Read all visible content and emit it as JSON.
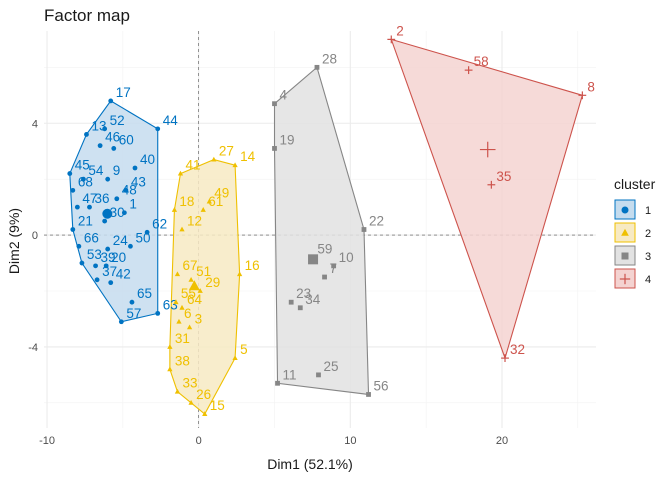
{
  "chart_data": {
    "type": "scatter",
    "title": "Factor map",
    "xlabel": "Dim1 (52.1%)",
    "ylabel": "Dim2 (9%)",
    "xlim": [
      -10.2,
      26.2
    ],
    "ylim": [
      -6.9,
      7.3
    ],
    "xticks": [
      -10,
      0,
      10,
      20
    ],
    "yticks": [
      -4,
      0,
      4
    ],
    "grid": true,
    "legend": {
      "title": "cluster",
      "position": "right"
    },
    "clusters": [
      {
        "name": "1",
        "color": "#0073C2",
        "fill": "#c5dcee",
        "marker": "circle",
        "points": [
          {
            "label": "17",
            "x": -5.8,
            "y": 4.8
          },
          {
            "label": "44",
            "x": -2.7,
            "y": 3.8
          },
          {
            "label": "13",
            "x": -7.4,
            "y": 3.6
          },
          {
            "label": "52",
            "x": -6.2,
            "y": 3.8
          },
          {
            "label": "46",
            "x": -6.5,
            "y": 3.2
          },
          {
            "label": "60",
            "x": -5.6,
            "y": 3.1
          },
          {
            "label": "45",
            "x": -8.5,
            "y": 2.2
          },
          {
            "label": "40",
            "x": -4.2,
            "y": 2.4
          },
          {
            "label": "54",
            "x": -7.6,
            "y": 2.0
          },
          {
            "label": "9",
            "x": -6.0,
            "y": 2.0
          },
          {
            "label": "68",
            "x": -8.3,
            "y": 1.6
          },
          {
            "label": "43",
            "x": -4.8,
            "y": 1.6
          },
          {
            "label": "48",
            "x": -5.4,
            "y": 1.3
          },
          {
            "label": "36",
            "x": -7.2,
            "y": 1.0
          },
          {
            "label": "47",
            "x": -8.0,
            "y": 1.0
          },
          {
            "label": "1",
            "x": -4.9,
            "y": 0.8
          },
          {
            "label": "30",
            "x": -6.2,
            "y": 0.5
          },
          {
            "label": "21",
            "x": -8.3,
            "y": 0.2
          },
          {
            "label": "62",
            "x": -3.4,
            "y": 0.1
          },
          {
            "label": "24",
            "x": -6.0,
            "y": -0.5
          },
          {
            "label": "50",
            "x": -4.5,
            "y": -0.4
          },
          {
            "label": "66",
            "x": -7.9,
            "y": -0.4
          },
          {
            "label": "53",
            "x": -7.7,
            "y": -1.0
          },
          {
            "label": "20",
            "x": -6.1,
            "y": -1.1
          },
          {
            "label": "39",
            "x": -6.8,
            "y": -1.1
          },
          {
            "label": "37",
            "x": -6.7,
            "y": -1.6
          },
          {
            "label": "42",
            "x": -5.8,
            "y": -1.7
          },
          {
            "label": "65",
            "x": -4.4,
            "y": -2.4
          },
          {
            "label": "63",
            "x": -2.7,
            "y": -2.8
          },
          {
            "label": "57",
            "x": -5.1,
            "y": -3.1
          }
        ]
      },
      {
        "name": "2",
        "color": "#EFC000",
        "fill": "#f7eac3",
        "marker": "triangle",
        "points": [
          {
            "label": "27",
            "x": 1.0,
            "y": 2.7
          },
          {
            "label": "14",
            "x": 2.4,
            "y": 2.5
          },
          {
            "label": "41",
            "x": -1.2,
            "y": 2.2
          },
          {
            "label": "49",
            "x": 0.7,
            "y": 1.2
          },
          {
            "label": "18",
            "x": -1.6,
            "y": 0.9
          },
          {
            "label": "61",
            "x": 0.3,
            "y": 0.9
          },
          {
            "label": "12",
            "x": -1.1,
            "y": 0.2
          },
          {
            "label": "16",
            "x": 2.7,
            "y": -1.4
          },
          {
            "label": "67",
            "x": -1.4,
            "y": -1.4
          },
          {
            "label": "51",
            "x": -0.5,
            "y": -1.6
          },
          {
            "label": "29",
            "x": 0.1,
            "y": -2.0
          },
          {
            "label": "55",
            "x": -1.5,
            "y": -2.4
          },
          {
            "label": "64",
            "x": -1.1,
            "y": -2.6
          },
          {
            "label": "6",
            "x": -1.3,
            "y": -3.1
          },
          {
            "label": "3",
            "x": -0.6,
            "y": -3.3
          },
          {
            "label": "31",
            "x": -1.9,
            "y": -4.0
          },
          {
            "label": "5",
            "x": 2.4,
            "y": -4.4
          },
          {
            "label": "38",
            "x": -1.9,
            "y": -4.8
          },
          {
            "label": "33",
            "x": -1.4,
            "y": -5.6
          },
          {
            "label": "26",
            "x": -0.5,
            "y": -6.0
          },
          {
            "label": "15",
            "x": 0.4,
            "y": -6.4
          }
        ]
      },
      {
        "name": "3",
        "color": "#868686",
        "fill": "#e2e2e2",
        "marker": "square",
        "points": [
          {
            "label": "28",
            "x": 7.8,
            "y": 6.0
          },
          {
            "label": "4",
            "x": 5.0,
            "y": 4.7
          },
          {
            "label": "19",
            "x": 5.0,
            "y": 3.1
          },
          {
            "label": "22",
            "x": 10.9,
            "y": 0.2
          },
          {
            "label": "59",
            "x": 7.5,
            "y": -0.8
          },
          {
            "label": "10",
            "x": 8.9,
            "y": -1.1
          },
          {
            "label": "7",
            "x": 8.3,
            "y": -1.5
          },
          {
            "label": "23",
            "x": 6.1,
            "y": -2.4
          },
          {
            "label": "34",
            "x": 6.7,
            "y": -2.6
          },
          {
            "label": "11",
            "x": 5.2,
            "y": -5.3
          },
          {
            "label": "25",
            "x": 7.9,
            "y": -5.0
          },
          {
            "label": "56",
            "x": 11.2,
            "y": -5.7
          }
        ]
      },
      {
        "name": "4",
        "color": "#CD534C",
        "fill": "#f4d3d1",
        "marker": "plus",
        "points": [
          {
            "label": "2",
            "x": 12.7,
            "y": 7.0
          },
          {
            "label": "58",
            "x": 17.8,
            "y": 5.9
          },
          {
            "label": "8",
            "x": 25.3,
            "y": 5.0
          },
          {
            "label": "35",
            "x": 19.3,
            "y": 1.8
          },
          {
            "label": "32",
            "x": 20.2,
            "y": -4.4
          }
        ]
      }
    ]
  }
}
